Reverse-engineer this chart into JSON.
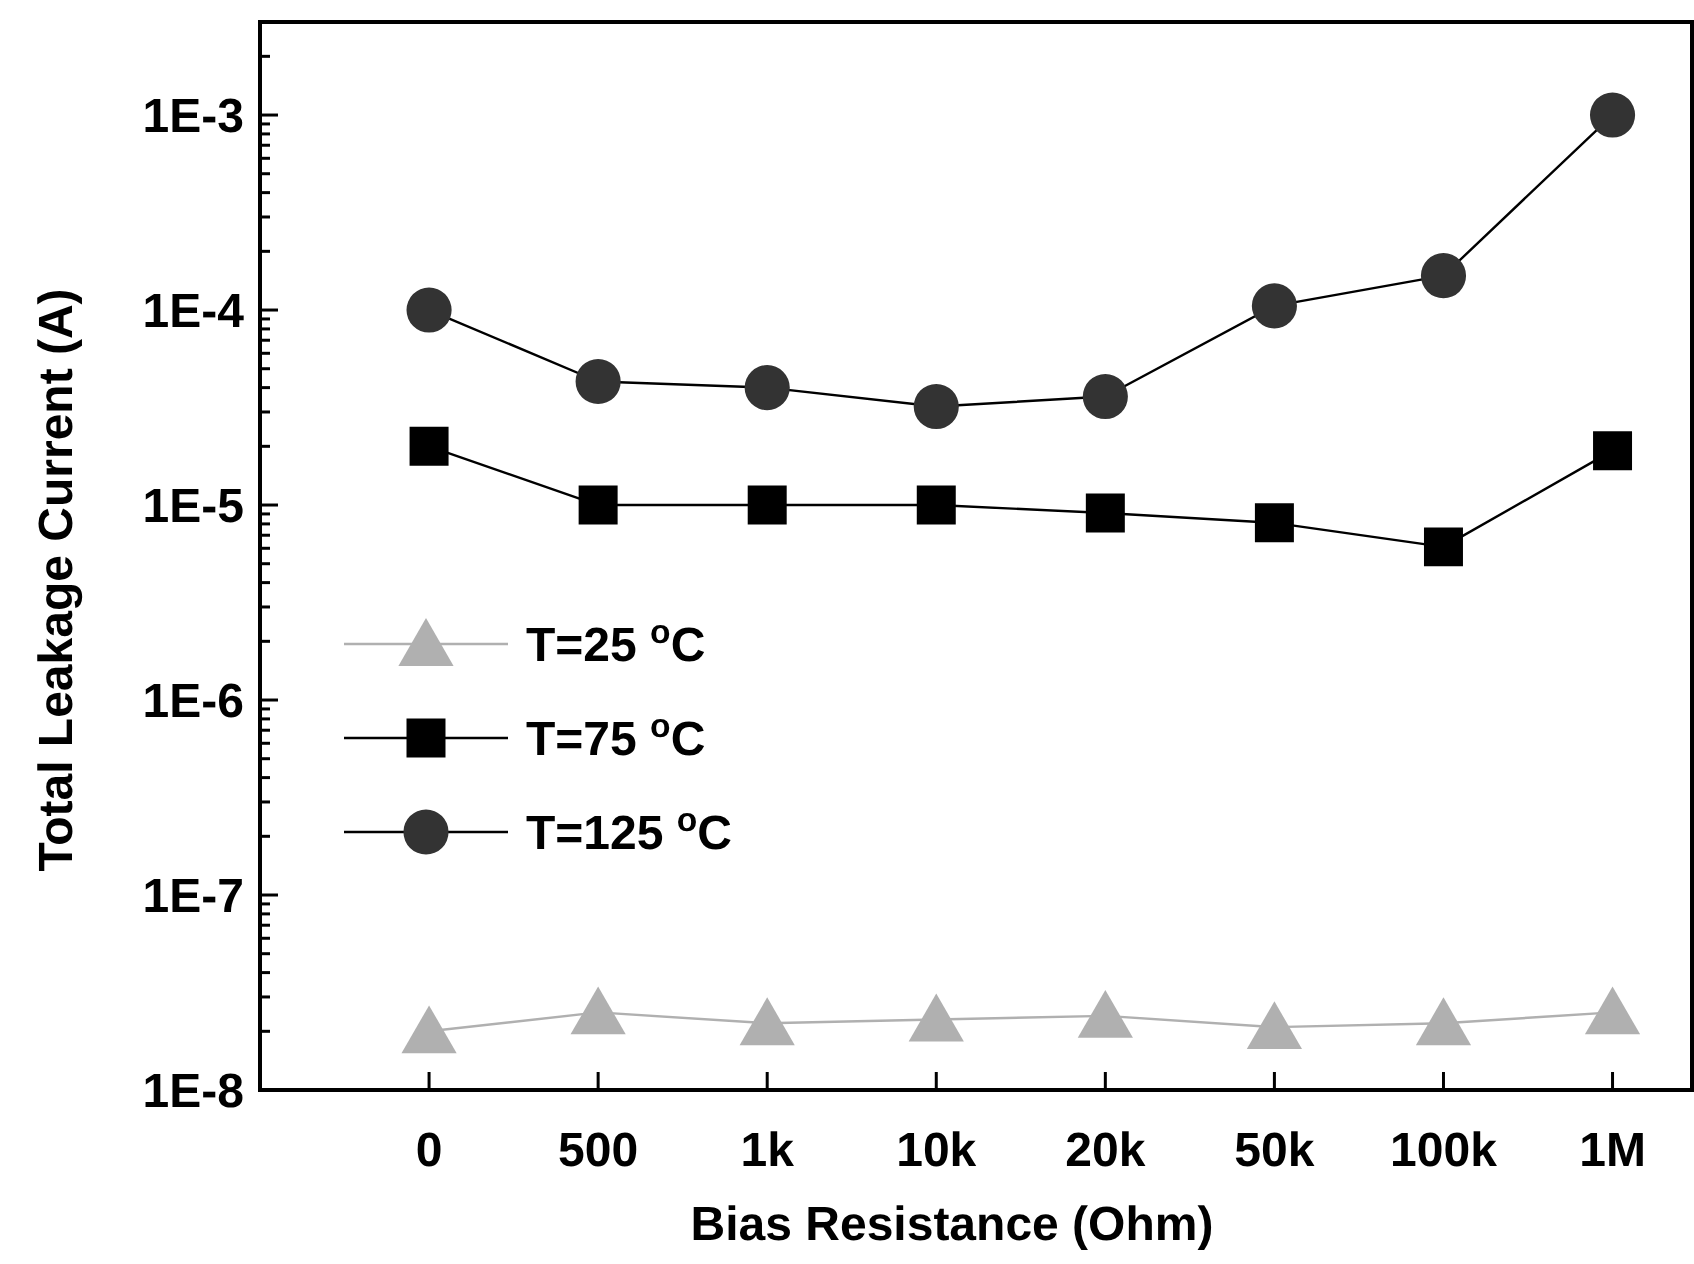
{
  "chart_data": {
    "type": "line",
    "xlabel": "Bias Resistance (Ohm)",
    "ylabel": "Total Leakage Current (A)",
    "categories": [
      "0",
      "500",
      "1k",
      "10k",
      "20k",
      "50k",
      "100k",
      "1M"
    ],
    "log": "y",
    "ylim": [
      1e-08,
      0.003
    ],
    "yticks": [
      {
        "value": 1e-08,
        "label": "1E-8"
      },
      {
        "value": 2e-08,
        "label": null
      },
      {
        "value": 3e-08,
        "label": null
      },
      {
        "value": 4e-08,
        "label": null
      },
      {
        "value": 5e-08,
        "label": null
      },
      {
        "value": 6e-08,
        "label": null
      },
      {
        "value": 7e-08,
        "label": null
      },
      {
        "value": 8e-08,
        "label": null
      },
      {
        "value": 9e-08,
        "label": null
      },
      {
        "value": 1e-07,
        "label": "1E-7"
      },
      {
        "value": 2e-07,
        "label": null
      },
      {
        "value": 3e-07,
        "label": null
      },
      {
        "value": 4e-07,
        "label": null
      },
      {
        "value": 5e-07,
        "label": null
      },
      {
        "value": 6e-07,
        "label": null
      },
      {
        "value": 7e-07,
        "label": null
      },
      {
        "value": 8e-07,
        "label": null
      },
      {
        "value": 9e-07,
        "label": null
      },
      {
        "value": 1e-06,
        "label": "1E-6"
      },
      {
        "value": 2e-06,
        "label": null
      },
      {
        "value": 3e-06,
        "label": null
      },
      {
        "value": 4e-06,
        "label": null
      },
      {
        "value": 5e-06,
        "label": null
      },
      {
        "value": 6e-06,
        "label": null
      },
      {
        "value": 7e-06,
        "label": null
      },
      {
        "value": 8e-06,
        "label": null
      },
      {
        "value": 9e-06,
        "label": null
      },
      {
        "value": 1e-05,
        "label": "1E-5"
      },
      {
        "value": 2e-05,
        "label": null
      },
      {
        "value": 3e-05,
        "label": null
      },
      {
        "value": 4e-05,
        "label": null
      },
      {
        "value": 5e-05,
        "label": null
      },
      {
        "value": 6e-05,
        "label": null
      },
      {
        "value": 7e-05,
        "label": null
      },
      {
        "value": 8e-05,
        "label": null
      },
      {
        "value": 9e-05,
        "label": null
      },
      {
        "value": 0.0001,
        "label": "1E-4"
      },
      {
        "value": 0.0002,
        "label": null
      },
      {
        "value": 0.0003,
        "label": null
      },
      {
        "value": 0.0004,
        "label": null
      },
      {
        "value": 0.0005,
        "label": null
      },
      {
        "value": 0.0006,
        "label": null
      },
      {
        "value": 0.0007,
        "label": null
      },
      {
        "value": 0.0008,
        "label": null
      },
      {
        "value": 0.0009,
        "label": null
      },
      {
        "value": 0.001,
        "label": "1E-3"
      },
      {
        "value": 0.002,
        "label": null
      }
    ],
    "grid": false,
    "legend": "left",
    "line_style": "solid",
    "series": [
      {
        "name": "T=25 $^{o}$C",
        "color": "#b0b0b0",
        "marker": "triangle",
        "values": [
          2e-08,
          2.5e-08,
          2.2e-08,
          2.3e-08,
          2.4e-08,
          2.1e-08,
          2.2e-08,
          2.5e-08
        ]
      },
      {
        "name": "T=75 $^{o}$C",
        "color": "#000000",
        "marker": "square",
        "values": [
          2e-05,
          1e-05,
          1e-05,
          1e-05,
          9.1e-06,
          8.1e-06,
          6.1e-06,
          1.9e-05
        ]
      },
      {
        "name": "T=125 $^{o}$C",
        "color": "#333333",
        "marker": "circle",
        "values": [
          0.0001,
          4.3e-05,
          4e-05,
          3.2e-05,
          3.6e-05,
          0.000105,
          0.00015,
          0.001
        ]
      }
    ]
  }
}
